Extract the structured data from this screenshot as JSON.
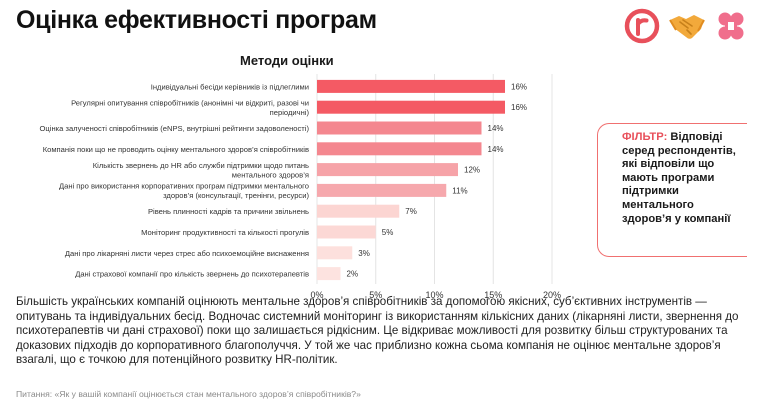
{
  "header": {
    "title": "Оцінка ефективності програм"
  },
  "logos": [
    {
      "icon": "r-circle-logo-icon",
      "color": "#e8505b"
    },
    {
      "icon": "handshake-icon",
      "color": "#f2a93b"
    },
    {
      "icon": "hashtag-heart-icon",
      "color": "#f06e8c"
    }
  ],
  "colors": {
    "accent": "#e8505b",
    "bar_shades": [
      "#f45a64",
      "#f45a64",
      "#f4878f",
      "#f4878f",
      "#f6a3a8",
      "#f6a8ad",
      "#fcd5d2",
      "#fcd8d5",
      "#fde0dd",
      "#fde3e0"
    ]
  },
  "chart_data": {
    "type": "bar",
    "orientation": "horizontal",
    "title": "Методи оцінки",
    "categories": [
      "Індивідуальні бесіди керівників із підлеглими",
      "Регулярні опитування співробітників (анонімні чи відкриті, разові чи періодичні)",
      "Оцінка залученості співробітників (eNPS, внутрішні рейтинги задоволеності)",
      "Компанія поки що не проводить оцінку ментального здоров’я співробітників",
      "Кількість звернень до HR або служби підтримки щодо питань ментального здоров’я",
      "Дані про використання корпоративних програм підтримки ментального здоров’я (консультації, тренінги, ресурси)",
      "Рівень плинності кадрів та причини звільнень",
      "Моніторинг продуктивності та кількості прогулів",
      "Дані про лікарняні листи через стрес або психоемоційне виснаження",
      "Дані страхової компанії про кількість звернень до психотерапевтів"
    ],
    "label_lines": [
      [
        "Індивідуальні бесіди керівників із підлеглими"
      ],
      [
        "Регулярні опитування співробітників (анонімні чи відкриті, разові чи",
        "періодичні)"
      ],
      [
        "Оцінка залученості співробітників (eNPS, внутрішні рейтинги задоволеності)"
      ],
      [
        "Компанія поки що не проводить оцінку ментального здоров’я співробітників"
      ],
      [
        "Кількість звернень до HR або служби підтримки щодо питань",
        "ментального здоров’я"
      ],
      [
        "Дані про використання корпоративних програм підтримки ментального",
        "здоров’я  (консультації, тренінги, ресурси)"
      ],
      [
        "Рівень плинності кадрів та причини звільнень"
      ],
      [
        "Моніторинг продуктивності та кількості прогулів"
      ],
      [
        "Дані про лікарняні листи через стрес або психоемоційне виснаження"
      ],
      [
        "Дані страхової компанії про кількість звернень до психотерапевтів"
      ]
    ],
    "values": [
      16,
      16,
      14,
      14,
      12,
      11,
      7,
      5,
      3,
      2
    ],
    "value_labels": [
      "16%",
      "16%",
      "14%",
      "14%",
      "12%",
      "11%",
      "7%",
      "5%",
      "3%",
      "2%"
    ],
    "xlim": [
      0,
      20
    ],
    "xticks": [
      0,
      5,
      10,
      15,
      20
    ],
    "xtick_labels": [
      "0%",
      "5%",
      "10%",
      "15%",
      "20%"
    ],
    "grid": true,
    "legend": "none"
  },
  "filter": {
    "label": "ФІЛЬТР:",
    "text": " Відповіді серед респондентів, які відповіли що мають програми підтримки ментального здоров’я у компанії"
  },
  "summary": "Більшість українських компаній оцінюють ментальне здоров’я співробітників за допомогою якісних, суб’єктивних інструментів — опитувань та індивідуальних бесід. Водночас системний моніторинг із використанням кількісних даних (лікарняні листи, звернення до психотерапевтів чи дані страхової) поки що залишається рідкісним. Це відкриває можливості для розвитку більш структурованих та доказових підходів до корпоративного благополуччя. У той же час приблизно кожна сьома компанія не оцінює ментальне здоров’я взагалі, що є точкою для потенційного розвитку HR-політик.",
  "footnote": "Питання: «Як у вашій компанії оцінюється стан ментального здоров’я співробітників?»"
}
